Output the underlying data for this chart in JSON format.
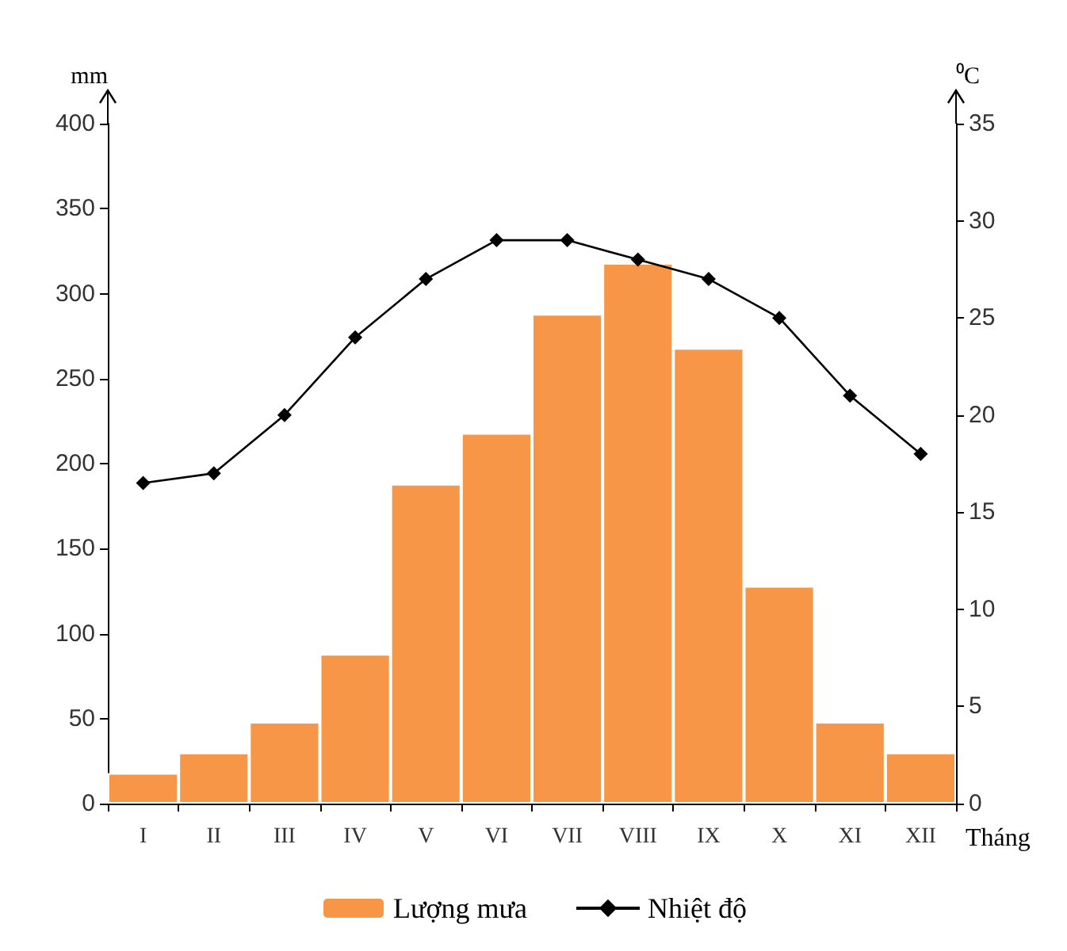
{
  "chart_data": {
    "type": "bar",
    "xlabel": "Tháng",
    "ylabel": "mm",
    "y2label": "⁰C",
    "categories": [
      "I",
      "II",
      "III",
      "IV",
      "V",
      "VI",
      "VII",
      "VIII",
      "IX",
      "X",
      "XI",
      "XII"
    ],
    "series": [
      {
        "name": "Lượng mưa",
        "color": "#f79646",
        "values": [
          18,
          30,
          48,
          88,
          188,
          218,
          288,
          318,
          268,
          128,
          48,
          30
        ]
      },
      {
        "name": "Nhiệt độ",
        "type": "line",
        "axis": "y2",
        "color": "#000000",
        "marker": "diamond",
        "values": [
          16.5,
          17,
          20,
          24,
          27,
          29,
          29,
          28,
          27,
          25,
          21,
          18
        ]
      }
    ],
    "ylim": [
      0,
      400
    ],
    "yticks": [
      0,
      50,
      100,
      150,
      200,
      250,
      300,
      350,
      400
    ],
    "y2lim": [
      0,
      35
    ],
    "y2ticks": [
      0,
      5,
      10,
      15,
      20,
      25,
      30,
      35
    ],
    "grid": false,
    "legend": "bottom"
  }
}
